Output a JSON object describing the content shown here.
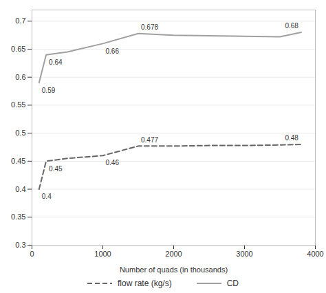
{
  "chart_data": {
    "type": "line",
    "xlabel": "Number of quads (in thousands)",
    "x": [
      100,
      200,
      500,
      1000,
      1500,
      2000,
      2500,
      3000,
      3500,
      3800
    ],
    "series": [
      {
        "name": "flow rate (kg/s)",
        "color": "#666666",
        "line_style": "dashed",
        "values": [
          0.4,
          0.45,
          0.455,
          0.46,
          0.477,
          0.477,
          0.478,
          0.478,
          0.479,
          0.48
        ],
        "value_labels": [
          "0.4",
          "0.45",
          null,
          "0.46",
          "0.477",
          null,
          null,
          null,
          null,
          "0.48"
        ]
      },
      {
        "name": "CD",
        "color": "#a0a0a0",
        "line_style": "solid",
        "values": [
          0.59,
          0.64,
          0.645,
          0.66,
          0.678,
          0.675,
          0.674,
          0.673,
          0.672,
          0.68
        ],
        "value_labels": [
          "0.59",
          "0.64",
          null,
          "0.66",
          "0.678",
          null,
          null,
          null,
          null,
          "0.68"
        ]
      }
    ],
    "xlim": [
      0,
      4000
    ],
    "xticks": [
      0,
      1000,
      2000,
      3000,
      4000
    ],
    "ylim": [
      0.3,
      0.72
    ],
    "yticks": [
      0.3,
      0.35,
      0.4,
      0.45,
      0.5,
      0.55,
      0.6,
      0.65,
      0.7
    ],
    "grid": "y",
    "data_labels": true,
    "legend": "below"
  }
}
